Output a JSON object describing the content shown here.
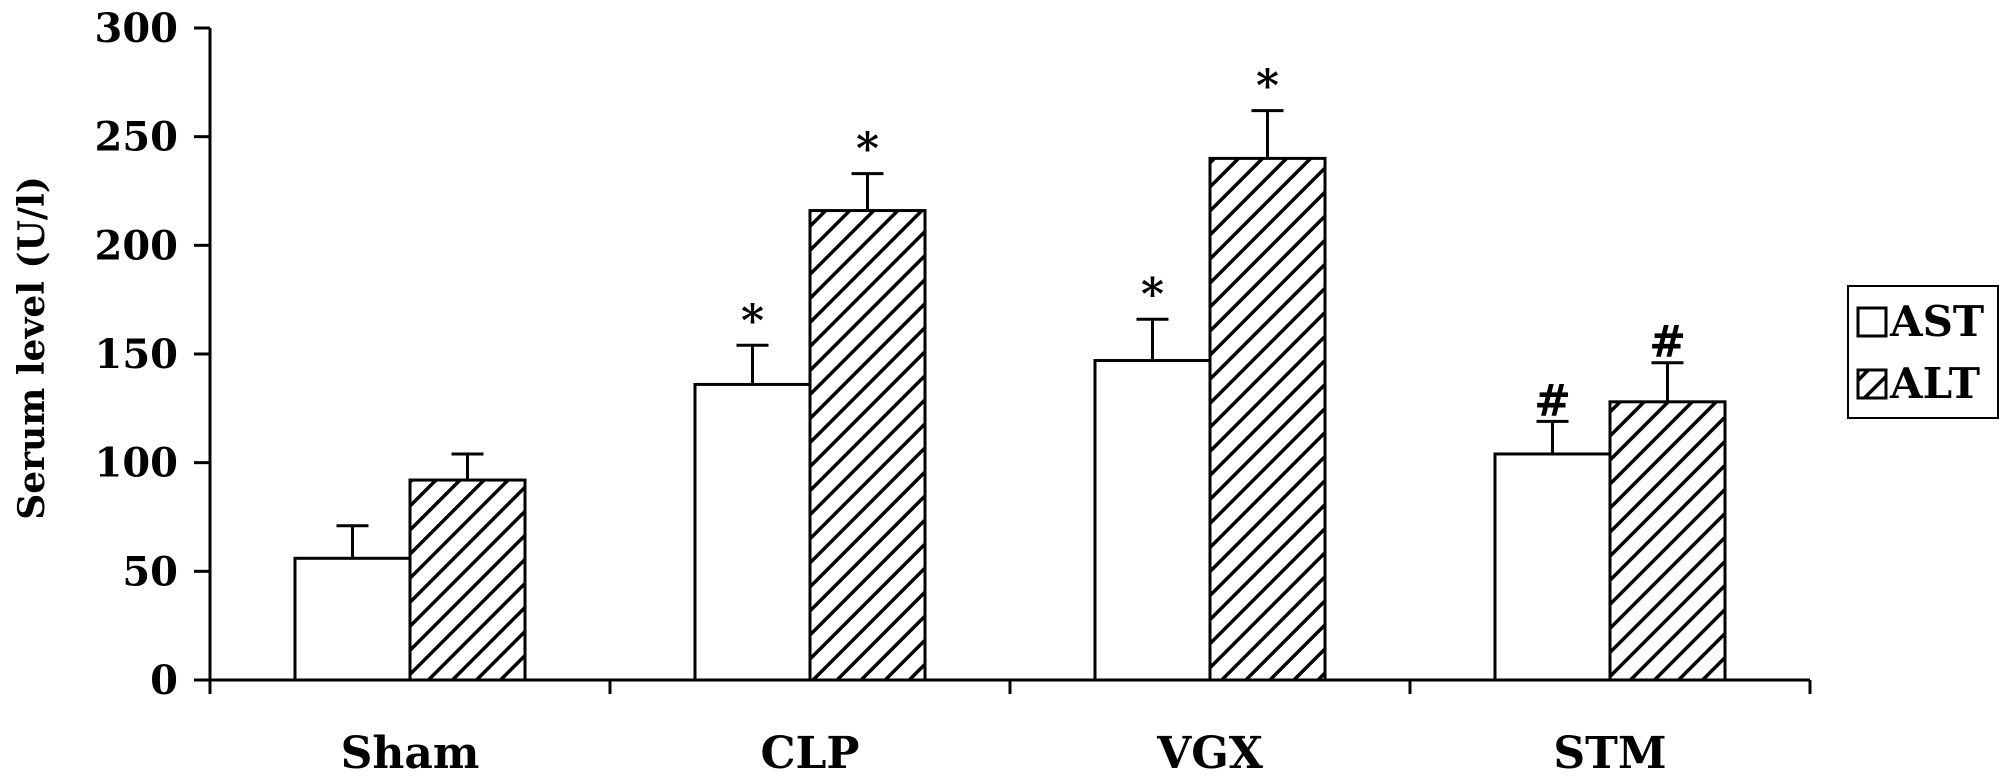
{
  "chart_data": {
    "type": "bar",
    "categories": [
      "Sham",
      "CLP",
      "VGX",
      "STM"
    ],
    "series": [
      {
        "name": "AST",
        "fill": "white",
        "values": [
          56,
          136,
          147,
          104
        ],
        "error": [
          15,
          18,
          19,
          15
        ],
        "annotations": [
          "",
          "*",
          "*",
          "#"
        ]
      },
      {
        "name": "ALT",
        "fill": "hatched",
        "values": [
          92,
          216,
          240,
          128
        ],
        "error": [
          12,
          17,
          22,
          18
        ],
        "annotations": [
          "",
          "*",
          "*",
          "#"
        ]
      }
    ],
    "ylabel": "Serum level (U/l)",
    "xlabel": "",
    "ylim": [
      0,
      300
    ],
    "yticks": [
      0,
      50,
      100,
      150,
      200,
      250,
      300
    ],
    "grid": false,
    "legend_position": "right"
  }
}
